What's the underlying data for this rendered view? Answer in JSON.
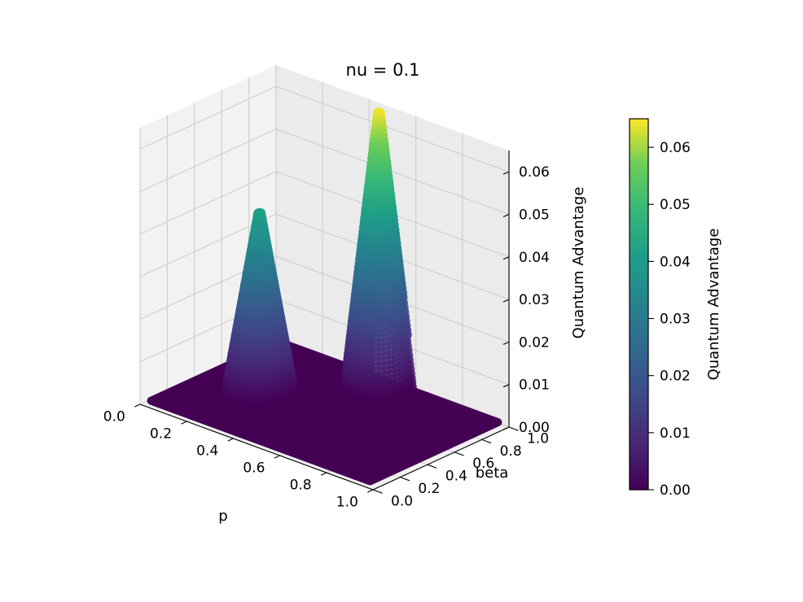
{
  "chart_data": {
    "type": "scatter",
    "subtype": "3d-scatter",
    "title": "nu = 0.1",
    "xlabel": "p",
    "ylabel": "beta",
    "zlabel": "Quantum Advantage",
    "xlim": [
      0.0,
      1.0
    ],
    "ylim": [
      0.0,
      1.0
    ],
    "zlim": [
      0.0,
      0.065
    ],
    "x_ticks": [
      "0.0",
      "0.2",
      "0.4",
      "0.6",
      "0.8",
      "1.0"
    ],
    "y_ticks": [
      "0.0",
      "0.2",
      "0.4",
      "0.6",
      "0.8",
      "1.0"
    ],
    "z_ticks": [
      "0.00",
      "0.01",
      "0.02",
      "0.03",
      "0.04",
      "0.05",
      "0.06"
    ],
    "grid": true,
    "colormap": "viridis",
    "colorbar": {
      "label": "Quantum Advantage",
      "range": [
        0.0,
        0.065
      ],
      "ticks": [
        "0.00",
        "0.01",
        "0.02",
        "0.03",
        "0.04",
        "0.05",
        "0.06"
      ]
    },
    "peaks": [
      {
        "p": 0.5,
        "beta": 0.9,
        "value": 0.064
      },
      {
        "p": 0.25,
        "beta": 0.45,
        "value": 0.042
      }
    ],
    "colors": {
      "low": "#440154",
      "mid": "#21918c",
      "high": "#fde725"
    }
  }
}
